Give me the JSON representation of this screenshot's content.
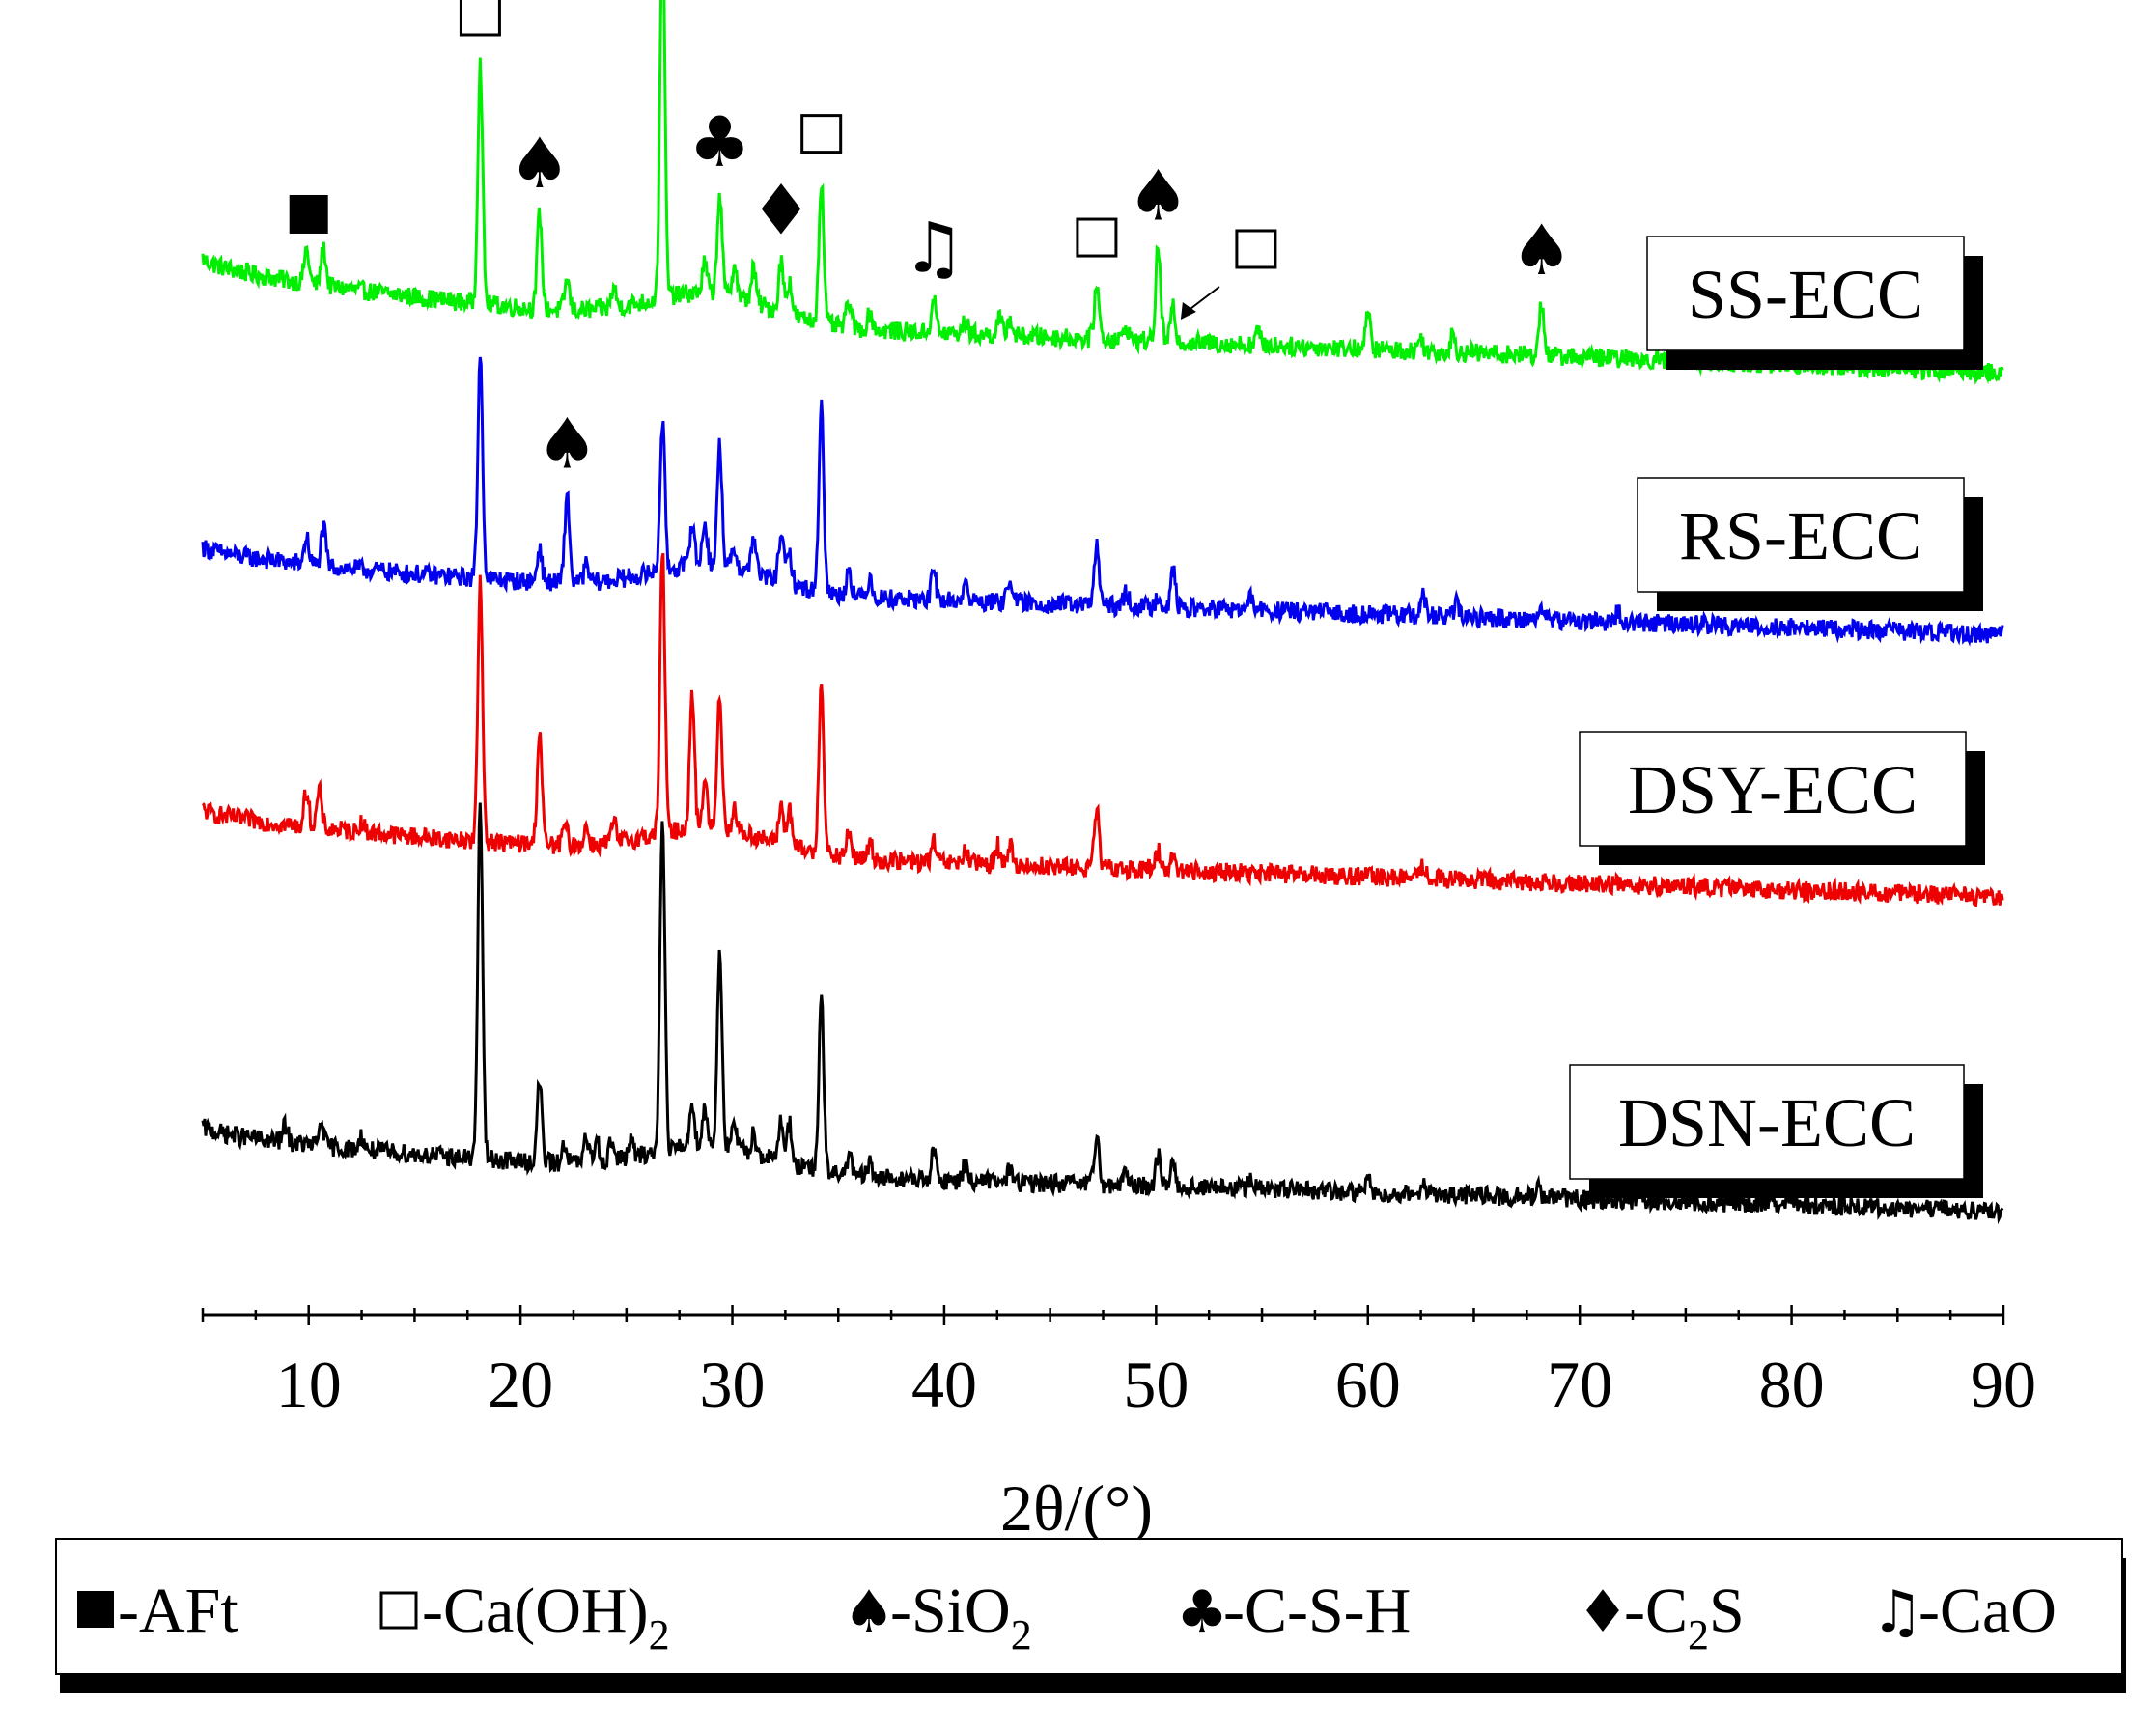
{
  "chart_data": {
    "type": "line",
    "title": "",
    "xlabel": "2θ/(°)",
    "ylabel": "",
    "xlim": [
      5,
      90
    ],
    "x_ticks": [
      10,
      20,
      30,
      40,
      50,
      60,
      70,
      80,
      90
    ],
    "grid": false,
    "background_noise": 0.28,
    "series": [
      {
        "name": "SS-ECC",
        "color": "#00ee00",
        "baseline": {
          "start": 4.6,
          "mid": 2.6,
          "end": 1.2,
          "bump_center": 29,
          "bump_height": 0.9
        },
        "peaks": [
          [
            9.9,
            1.0
          ],
          [
            10.7,
            1.1
          ],
          [
            18.1,
            7.1
          ],
          [
            20.9,
            2.8
          ],
          [
            22.2,
            0.9
          ],
          [
            24.4,
            0.6
          ],
          [
            26.7,
            11.0
          ],
          [
            28.7,
            0.9
          ],
          [
            29.4,
            3.0
          ],
          [
            30.1,
            1.0
          ],
          [
            31.0,
            1.0
          ],
          [
            32.3,
            1.5
          ],
          [
            32.7,
            1.0
          ],
          [
            34.2,
            4.2
          ],
          [
            35.5,
            0.8
          ],
          [
            36.5,
            0.5
          ],
          [
            39.5,
            1.0
          ],
          [
            41.0,
            0.4
          ],
          [
            42.6,
            0.5
          ],
          [
            43.1,
            0.5
          ],
          [
            47.2,
            1.6
          ],
          [
            48.6,
            0.4
          ],
          [
            50.1,
            2.8
          ],
          [
            50.8,
            1.0
          ],
          [
            54.8,
            0.4
          ],
          [
            60.0,
            1.0
          ],
          [
            62.5,
            0.4
          ],
          [
            64.0,
            0.5
          ],
          [
            68.2,
            1.6
          ]
        ]
      },
      {
        "name": "RS-ECC",
        "color": "#0000ee",
        "baseline": {
          "start": 3.2,
          "mid": 1.8,
          "end": 0.6,
          "bump_center": 29,
          "bump_height": 0.8
        },
        "peaks": [
          [
            9.9,
            0.8
          ],
          [
            10.7,
            1.1
          ],
          [
            18.1,
            6.6
          ],
          [
            20.9,
            1.0
          ],
          [
            22.2,
            2.6
          ],
          [
            23.1,
            0.5
          ],
          [
            26.7,
            4.4
          ],
          [
            28.1,
            1.3
          ],
          [
            28.7,
            1.3
          ],
          [
            29.4,
            3.6
          ],
          [
            30.1,
            0.6
          ],
          [
            31.0,
            1.1
          ],
          [
            32.3,
            1.5
          ],
          [
            32.7,
            0.9
          ],
          [
            34.2,
            5.6
          ],
          [
            35.5,
            0.8
          ],
          [
            36.5,
            0.6
          ],
          [
            39.5,
            0.8
          ],
          [
            41.0,
            0.5
          ],
          [
            43.1,
            0.8
          ],
          [
            47.2,
            1.8
          ],
          [
            48.6,
            0.4
          ],
          [
            50.1,
            0.4
          ],
          [
            50.8,
            1.1
          ],
          [
            54.5,
            0.4
          ],
          [
            62.6,
            0.6
          ],
          [
            64.2,
            0.4
          ],
          [
            68.2,
            0.4
          ],
          [
            71.8,
            0.3
          ]
        ]
      },
      {
        "name": "DSY-ECC",
        "color": "#ee0000",
        "baseline": {
          "start": 3.2,
          "mid": 1.8,
          "end": 0.6,
          "bump_center": 29,
          "bump_height": 0.8
        },
        "peaks": [
          [
            9.9,
            1.1
          ],
          [
            10.5,
            1.1
          ],
          [
            12.5,
            0.3
          ],
          [
            18.1,
            7.6
          ],
          [
            20.9,
            3.4
          ],
          [
            22.1,
            0.6
          ],
          [
            23.1,
            0.5
          ],
          [
            24.4,
            0.6
          ],
          [
            26.7,
            8.4
          ],
          [
            28.1,
            4.0
          ],
          [
            28.7,
            1.4
          ],
          [
            29.4,
            4.0
          ],
          [
            30.1,
            0.7
          ],
          [
            32.3,
            1.2
          ],
          [
            32.7,
            1.1
          ],
          [
            34.2,
            5.2
          ],
          [
            35.5,
            0.8
          ],
          [
            36.5,
            0.5
          ],
          [
            39.5,
            0.6
          ],
          [
            41.0,
            0.4
          ],
          [
            42.5,
            0.6
          ],
          [
            43.1,
            0.6
          ],
          [
            47.2,
            1.7
          ],
          [
            50.1,
            0.6
          ],
          [
            50.8,
            0.5
          ],
          [
            62.6,
            0.4
          ]
        ]
      },
      {
        "name": "DSN-ECC",
        "color": "#000000",
        "baseline": {
          "start": 3.0,
          "mid": 1.6,
          "end": 0.5,
          "bump_center": 29,
          "bump_height": 0.8
        },
        "peaks": [
          [
            8.9,
            0.5
          ],
          [
            10.6,
            0.7
          ],
          [
            12.5,
            0.4
          ],
          [
            18.1,
            10.5
          ],
          [
            20.9,
            2.4
          ],
          [
            22.1,
            0.6
          ],
          [
            23.1,
            0.7
          ],
          [
            23.6,
            0.7
          ],
          [
            24.3,
            0.6
          ],
          [
            25.2,
            0.5
          ],
          [
            26.7,
            10.0
          ],
          [
            28.1,
            1.3
          ],
          [
            28.7,
            1.1
          ],
          [
            29.4,
            5.8
          ],
          [
            30.1,
            0.7
          ],
          [
            31.0,
            0.6
          ],
          [
            32.3,
            1.3
          ],
          [
            32.7,
            1.2
          ],
          [
            34.2,
            5.1
          ],
          [
            35.5,
            0.6
          ],
          [
            36.5,
            0.4
          ],
          [
            39.5,
            0.8
          ],
          [
            41.0,
            0.5
          ],
          [
            43.1,
            0.4
          ],
          [
            47.2,
            1.5
          ],
          [
            48.6,
            0.4
          ],
          [
            50.1,
            1.0
          ],
          [
            50.8,
            0.8
          ],
          [
            54.5,
            0.4
          ],
          [
            60.0,
            0.4
          ],
          [
            62.6,
            0.4
          ],
          [
            68.0,
            0.3
          ]
        ]
      }
    ],
    "phase_markers": [
      {
        "phase": "AFt",
        "symbol": "■",
        "x": 10.0,
        "series": "SS-ECC"
      },
      {
        "phase": "Ca(OH)2",
        "symbol": "□",
        "x": 18.1,
        "series": "SS-ECC"
      },
      {
        "phase": "SiO2",
        "symbol": "♠",
        "x": 20.9,
        "series": "SS-ECC"
      },
      {
        "phase": "SiO2",
        "symbol": "♠",
        "x": 26.7,
        "series": "SS-ECC"
      },
      {
        "phase": "C-S-H",
        "symbol": "♣",
        "x": 29.4,
        "series": "SS-ECC"
      },
      {
        "phase": "C2S",
        "symbol": "♦",
        "x": 32.3,
        "series": "SS-ECC"
      },
      {
        "phase": "Ca(OH)2",
        "symbol": "□",
        "x": 34.2,
        "series": "SS-ECC"
      },
      {
        "phase": "CaO",
        "symbol": "♫",
        "x": 39.5,
        "series": "SS-ECC"
      },
      {
        "phase": "Ca(OH)2",
        "symbol": "□",
        "x": 47.2,
        "series": "SS-ECC"
      },
      {
        "phase": "SiO2",
        "symbol": "♠",
        "x": 50.1,
        "series": "SS-ECC"
      },
      {
        "phase": "Ca(OH)2",
        "symbol": "□",
        "x": 50.8,
        "series": "SS-ECC",
        "arrow": true
      },
      {
        "phase": "SiO2",
        "symbol": "♠",
        "x": 68.2,
        "series": "SS-ECC"
      },
      {
        "phase": "SiO2",
        "symbol": "♠",
        "x": 22.2,
        "series": "RS-ECC"
      }
    ],
    "legend": [
      {
        "symbol": "■",
        "text": "-AFt",
        "sub": "",
        "tail": ""
      },
      {
        "symbol": "□",
        "text": "-Ca(OH)",
        "sub": "2",
        "tail": ""
      },
      {
        "symbol": "♠",
        "text": "-SiO",
        "sub": "2",
        "tail": ""
      },
      {
        "symbol": "♣",
        "text": "-C-S-H",
        "sub": "",
        "tail": ""
      },
      {
        "symbol": "♦",
        "text": "-C",
        "sub": "2",
        "tail": "S"
      },
      {
        "symbol": "♫",
        "text": "-CaO",
        "sub": "",
        "tail": ""
      }
    ]
  }
}
